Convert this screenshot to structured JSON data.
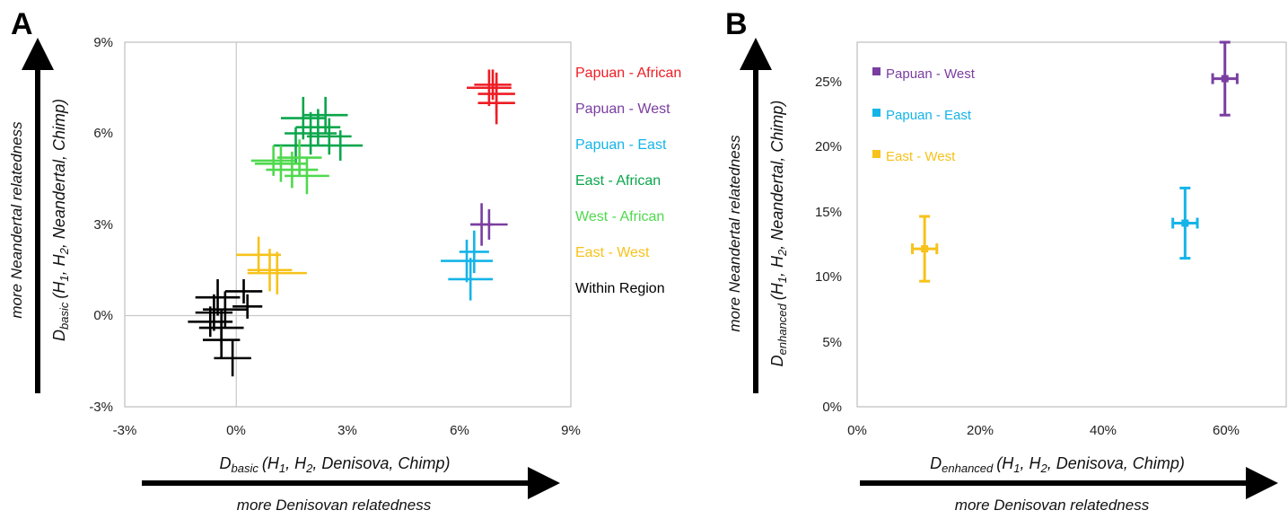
{
  "panels": {
    "a": {
      "letter": "A",
      "y_axis_label": {
        "pre": "D",
        "sub1": "basic",
        "mid": "(H",
        "s1": "1",
        "c1": ", H",
        "s2": "2",
        "post": ", Neandertal, Chimp)"
      },
      "y_arrow_label": "more Neandertal relatedness",
      "x_axis_label": {
        "pre": "D",
        "sub1": "basic",
        "mid": "(H",
        "s1": "1",
        "c1": ", H",
        "s2": "2",
        "post": ", Denisova, Chimp)"
      },
      "x_arrow_label": "more Denisovan relatedness",
      "x_ticks": [
        "-3%",
        "0%",
        "3%",
        "6%",
        "9%"
      ],
      "y_ticks": [
        "-3%",
        "0%",
        "3%",
        "6%",
        "9%"
      ]
    },
    "b": {
      "letter": "B",
      "y_axis_label": {
        "pre": "D",
        "sub1": "enhanced",
        "mid": "(H",
        "s1": "1",
        "c1": ", H",
        "s2": "2",
        "post": ", Neandertal, Chimp)"
      },
      "y_arrow_label": "more Neandertal relatedness",
      "x_axis_label": {
        "pre": "D",
        "sub1": "enhanced",
        "mid": "(H",
        "s1": "1",
        "c1": ", H",
        "s2": "2",
        "post": ", Denisova, Chimp)"
      },
      "x_arrow_label": "more Denisovan relatedness",
      "x_ticks": [
        "0%",
        "20%",
        "40%",
        "60%"
      ],
      "y_ticks": [
        "0%",
        "5%",
        "10%",
        "15%",
        "20%",
        "25%"
      ]
    }
  },
  "chart_data": [
    {
      "type": "scatter",
      "panel": "A",
      "xlim": [
        -3,
        9
      ],
      "ylim": [
        -3,
        9
      ],
      "x_unit": "%",
      "y_unit": "%",
      "grid": false,
      "reference_lines": {
        "x": 0,
        "y": 0
      },
      "legend_position": "right",
      "series": [
        {
          "name": "Papuan - African",
          "color": "#ee1c24",
          "points": [
            {
              "x": 6.8,
              "y": 7.5,
              "xerr": 0.6,
              "yerr": 0.6
            },
            {
              "x": 7.0,
              "y": 7.3,
              "xerr": 0.5,
              "yerr": 0.7
            },
            {
              "x": 6.9,
              "y": 7.6,
              "xerr": 0.5,
              "yerr": 0.5
            },
            {
              "x": 7.0,
              "y": 7.0,
              "xerr": 0.5,
              "yerr": 0.7
            }
          ]
        },
        {
          "name": "Papuan - West",
          "color": "#7a3ea1",
          "points": [
            {
              "x": 6.6,
              "y": 3.0,
              "xerr": 0.3,
              "yerr": 0.7
            },
            {
              "x": 6.8,
              "y": 3.0,
              "xerr": 0.5,
              "yerr": 0.5
            }
          ]
        },
        {
          "name": "Papuan - East",
          "color": "#15b4e8",
          "points": [
            {
              "x": 6.2,
              "y": 1.8,
              "xerr": 0.7,
              "yerr": 0.7
            },
            {
              "x": 6.3,
              "y": 1.2,
              "xerr": 0.6,
              "yerr": 0.7
            },
            {
              "x": 6.4,
              "y": 2.1,
              "xerr": 0.4,
              "yerr": 0.7
            }
          ]
        },
        {
          "name": "East - African",
          "color": "#0aa64b",
          "points": [
            {
              "x": 1.8,
              "y": 6.5,
              "xerr": 0.6,
              "yerr": 0.7
            },
            {
              "x": 2.2,
              "y": 6.2,
              "xerr": 0.6,
              "yerr": 0.6
            },
            {
              "x": 2.5,
              "y": 5.9,
              "xerr": 0.6,
              "yerr": 0.6
            },
            {
              "x": 1.6,
              "y": 5.6,
              "xerr": 0.6,
              "yerr": 0.6
            },
            {
              "x": 2.8,
              "y": 5.6,
              "xerr": 0.6,
              "yerr": 0.5
            },
            {
              "x": 2.0,
              "y": 6.0,
              "xerr": 0.7,
              "yerr": 0.7
            },
            {
              "x": 2.4,
              "y": 6.6,
              "xerr": 0.6,
              "yerr": 0.6
            }
          ]
        },
        {
          "name": "West - African",
          "color": "#4fd94d",
          "points": [
            {
              "x": 1.2,
              "y": 5.0,
              "xerr": 0.7,
              "yerr": 0.6
            },
            {
              "x": 1.5,
              "y": 4.8,
              "xerr": 0.7,
              "yerr": 0.6
            },
            {
              "x": 1.9,
              "y": 4.6,
              "xerr": 0.6,
              "yerr": 0.6
            },
            {
              "x": 1.0,
              "y": 5.1,
              "xerr": 0.6,
              "yerr": 0.5
            },
            {
              "x": 1.7,
              "y": 5.2,
              "xerr": 0.6,
              "yerr": 0.6
            }
          ]
        },
        {
          "name": "East - West",
          "color": "#f7c21b",
          "points": [
            {
              "x": 0.6,
              "y": 2.0,
              "xerr": 0.6,
              "yerr": 0.6
            },
            {
              "x": 0.9,
              "y": 1.5,
              "xerr": 0.6,
              "yerr": 0.7
            },
            {
              "x": 1.1,
              "y": 1.4,
              "xerr": 0.8,
              "yerr": 0.7
            }
          ]
        },
        {
          "name": "Within Region",
          "color": "#000000",
          "points": [
            {
              "x": -0.5,
              "y": 0.6,
              "xerr": 0.6,
              "yerr": 0.6
            },
            {
              "x": -0.3,
              "y": 0.2,
              "xerr": 0.6,
              "yerr": 0.6
            },
            {
              "x": -0.7,
              "y": -0.2,
              "xerr": 0.6,
              "yerr": 0.5
            },
            {
              "x": -0.4,
              "y": -0.4,
              "xerr": 0.6,
              "yerr": 0.6
            },
            {
              "x": 0.2,
              "y": 0.8,
              "xerr": 0.5,
              "yerr": 0.4
            },
            {
              "x": 0.3,
              "y": 0.3,
              "xerr": 0.4,
              "yerr": 0.4
            },
            {
              "x": -0.6,
              "y": 0.1,
              "xerr": 0.5,
              "yerr": 0.6
            },
            {
              "x": -0.1,
              "y": -1.4,
              "xerr": 0.5,
              "yerr": 0.6
            },
            {
              "x": -0.4,
              "y": -0.8,
              "xerr": 0.5,
              "yerr": 0.6
            }
          ]
        }
      ]
    },
    {
      "type": "scatter",
      "panel": "B",
      "xlim": [
        0,
        70
      ],
      "ylim": [
        0,
        27
      ],
      "x_unit": "%",
      "y_unit": "%",
      "grid": false,
      "legend_position": "top-left",
      "series": [
        {
          "name": "Papuan - West",
          "color": "#7a3ea1",
          "points": [
            {
              "x": 60.0,
              "y": 24.3,
              "xerr": 2.0,
              "yerr": 2.7
            }
          ]
        },
        {
          "name": "Papuan - East",
          "color": "#15b4e8",
          "points": [
            {
              "x": 53.5,
              "y": 13.6,
              "xerr": 2.0,
              "yerr": 2.6
            }
          ]
        },
        {
          "name": "East - West",
          "color": "#f7c21b",
          "points": [
            {
              "x": 11.0,
              "y": 11.7,
              "xerr": 2.0,
              "yerr": 2.4
            }
          ]
        }
      ]
    }
  ]
}
